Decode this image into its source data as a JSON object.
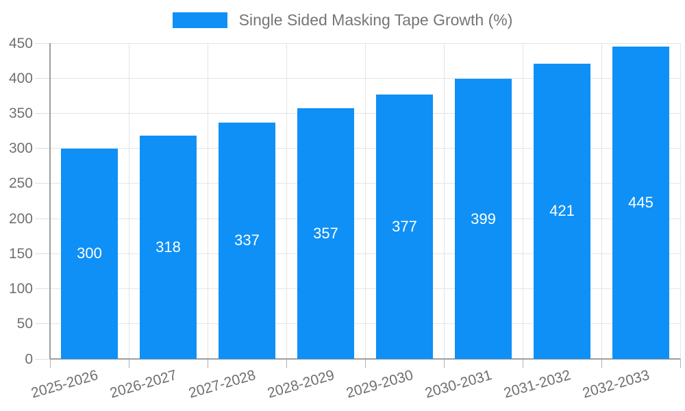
{
  "legend": {
    "label": "Single Sided Masking Tape Growth (%)",
    "swatch_color": "#0e90f6"
  },
  "chart_data": {
    "type": "bar",
    "title": "Single Sided Masking Tape Growth (%)",
    "categories": [
      "2025-2026",
      "2026-2027",
      "2027-2028",
      "2028-2029",
      "2029-2030",
      "2030-2031",
      "2031-2032",
      "2032-2033"
    ],
    "series": [
      {
        "name": "Single Sided Masking Tape Growth (%)",
        "values": [
          300,
          318,
          337,
          357,
          377,
          399,
          421,
          445
        ]
      }
    ],
    "value_labels": [
      "300",
      "318",
      "337",
      "357",
      "377",
      "399",
      "421",
      "445"
    ],
    "xlabel": "",
    "ylabel": "",
    "ylim": [
      0,
      450
    ],
    "yticks": [
      0,
      50,
      100,
      150,
      200,
      250,
      300,
      350,
      400,
      450
    ],
    "grid": "on",
    "legend_position": "top",
    "bar_color": "#0e90f6",
    "value_label_color": "#ffffff",
    "axis_color": "#9e9e9e",
    "gridline_color": "#e4e4e4",
    "tick_label_color": "#707070"
  }
}
